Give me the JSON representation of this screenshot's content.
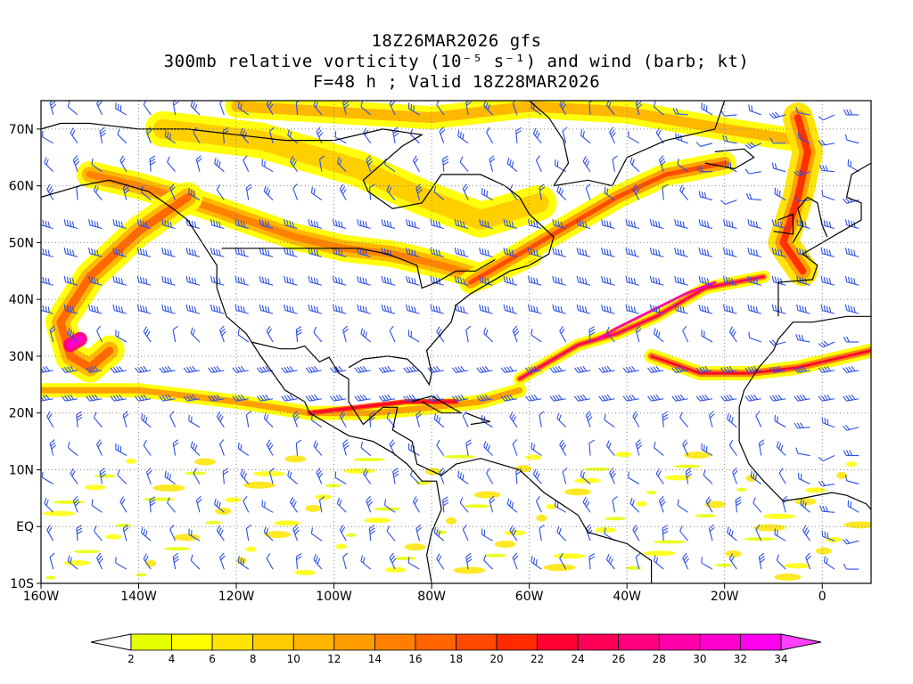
{
  "title": {
    "line1": "18Z26MAR2026 gfs",
    "line2": "300mb relative vorticity (10⁻⁵ s⁻¹) and wind (barb; kt)",
    "line3": "F=48 h ; Valid 18Z28MAR2026"
  },
  "axes": {
    "lon_range": [
      -160,
      10
    ],
    "lat_range": [
      -10,
      75
    ],
    "x_ticks": [
      {
        "value": -160,
        "label": "160W"
      },
      {
        "value": -140,
        "label": "140W"
      },
      {
        "value": -120,
        "label": "120W"
      },
      {
        "value": -100,
        "label": "100W"
      },
      {
        "value": -80,
        "label": "80W"
      },
      {
        "value": -60,
        "label": "60W"
      },
      {
        "value": -40,
        "label": "40W"
      },
      {
        "value": -20,
        "label": "20W"
      },
      {
        "value": 0,
        "label": "0"
      }
    ],
    "y_ticks": [
      {
        "value": 70,
        "label": "70N"
      },
      {
        "value": 60,
        "label": "60N"
      },
      {
        "value": 50,
        "label": "50N"
      },
      {
        "value": 40,
        "label": "40N"
      },
      {
        "value": 30,
        "label": "30N"
      },
      {
        "value": 20,
        "label": "20N"
      },
      {
        "value": 10,
        "label": "10N"
      },
      {
        "value": 0,
        "label": "EQ"
      },
      {
        "value": -10,
        "label": "10S"
      }
    ],
    "grid": "dotted"
  },
  "colorbar": {
    "levels": [
      "2",
      "4",
      "6",
      "8",
      "10",
      "12",
      "14",
      "16",
      "18",
      "20",
      "22",
      "24",
      "26",
      "28",
      "30",
      "32",
      "34"
    ],
    "colors": [
      "#e6ff00",
      "#ffff00",
      "#ffe400",
      "#ffcc00",
      "#ffb400",
      "#ff9c00",
      "#ff8000",
      "#ff6400",
      "#ff4800",
      "#ff2a00",
      "#ff0030",
      "#ff0058",
      "#ff0080",
      "#ff00a8",
      "#ff00d0",
      "#ff00f0"
    ],
    "low_color": "#ffffff",
    "high_color": "#ff40ff"
  },
  "colors": {
    "barb": "#2b4fe0",
    "coast": "#000000"
  }
}
